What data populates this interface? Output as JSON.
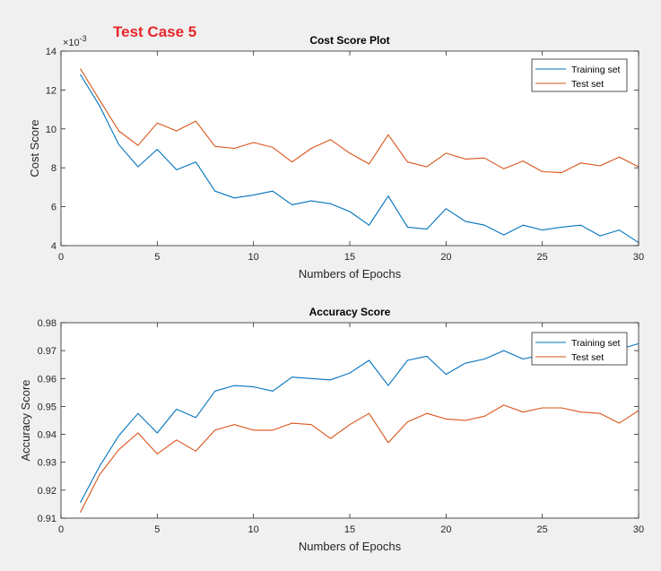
{
  "figure": {
    "header": "Test Case 5",
    "background": "#f0f0f0",
    "series_colors": [
      "#0072bd",
      "#d95319"
    ]
  },
  "chart_data": [
    {
      "type": "line",
      "title": "Cost Score Plot",
      "xlabel": "Numbers of Epochs",
      "ylabel": "Cost Score",
      "exponent_label": "×10",
      "exponent_power": "-3",
      "xlim": [
        0,
        30
      ],
      "ylim": [
        4,
        14
      ],
      "xticks": [
        0,
        5,
        10,
        15,
        20,
        25,
        30
      ],
      "yticks": [
        4,
        6,
        8,
        10,
        12,
        14
      ],
      "yticklabels": [
        "4",
        "6",
        "8",
        "10",
        "12",
        "14"
      ],
      "grid": false,
      "legend_location": "top-right",
      "x": [
        1,
        2,
        3,
        4,
        5,
        6,
        7,
        8,
        9,
        10,
        11,
        12,
        13,
        14,
        15,
        16,
        17,
        18,
        19,
        20,
        21,
        22,
        23,
        24,
        25,
        26,
        27,
        28,
        29,
        30
      ],
      "series": [
        {
          "name": "Training set",
          "color": "#0072bd",
          "values": [
            12.8,
            11.2,
            9.2,
            8.05,
            8.95,
            7.9,
            8.3,
            6.8,
            6.45,
            6.6,
            6.8,
            6.1,
            6.3,
            6.15,
            5.75,
            5.05,
            6.55,
            4.95,
            4.85,
            5.9,
            5.25,
            5.05,
            4.55,
            5.05,
            4.8,
            4.95,
            5.05,
            4.5,
            4.8,
            4.15
          ]
        },
        {
          "name": "Test set",
          "color": "#d95319",
          "values": [
            13.1,
            11.5,
            9.9,
            9.15,
            10.3,
            9.9,
            10.4,
            9.1,
            9.0,
            9.3,
            9.05,
            8.3,
            9.0,
            9.45,
            8.75,
            8.2,
            9.7,
            8.3,
            8.05,
            8.75,
            8.45,
            8.5,
            7.95,
            8.35,
            7.8,
            7.75,
            8.25,
            8.1,
            8.55,
            8.05
          ]
        }
      ]
    },
    {
      "type": "line",
      "title": "Accuracy Score",
      "xlabel": "Numbers of Epochs",
      "ylabel": "Accuracy Score",
      "xlim": [
        0,
        30
      ],
      "ylim": [
        0.91,
        0.98
      ],
      "xticks": [
        0,
        5,
        10,
        15,
        20,
        25,
        30
      ],
      "yticks": [
        0.91,
        0.92,
        0.93,
        0.94,
        0.95,
        0.96,
        0.97,
        0.98
      ],
      "yticklabels": [
        "0.91",
        "0.92",
        "0.93",
        "0.94",
        "0.95",
        "0.96",
        "0.97",
        "0.98"
      ],
      "grid": false,
      "legend_location": "top-right",
      "x": [
        1,
        2,
        3,
        4,
        5,
        6,
        7,
        8,
        9,
        10,
        11,
        12,
        13,
        14,
        15,
        16,
        17,
        18,
        19,
        20,
        21,
        22,
        23,
        24,
        25,
        26,
        27,
        28,
        29,
        30
      ],
      "series": [
        {
          "name": "Training set",
          "color": "#0072bd",
          "values": [
            0.9155,
            0.9285,
            0.9395,
            0.9475,
            0.9405,
            0.949,
            0.946,
            0.9555,
            0.9575,
            0.957,
            0.9555,
            0.9605,
            0.96,
            0.9595,
            0.962,
            0.9665,
            0.9575,
            0.9665,
            0.968,
            0.9615,
            0.9655,
            0.967,
            0.97,
            0.967,
            0.9685,
            0.9685,
            0.969,
            0.97,
            0.9705,
            0.9725
          ]
        },
        {
          "name": "Test set",
          "color": "#d95319",
          "values": [
            0.912,
            0.9255,
            0.9345,
            0.9405,
            0.933,
            0.938,
            0.934,
            0.9415,
            0.9435,
            0.9415,
            0.9415,
            0.944,
            0.9435,
            0.9385,
            0.9435,
            0.9475,
            0.937,
            0.9445,
            0.9475,
            0.9455,
            0.945,
            0.9465,
            0.9505,
            0.948,
            0.9495,
            0.9495,
            0.948,
            0.9475,
            0.944,
            0.9485
          ]
        }
      ]
    }
  ]
}
